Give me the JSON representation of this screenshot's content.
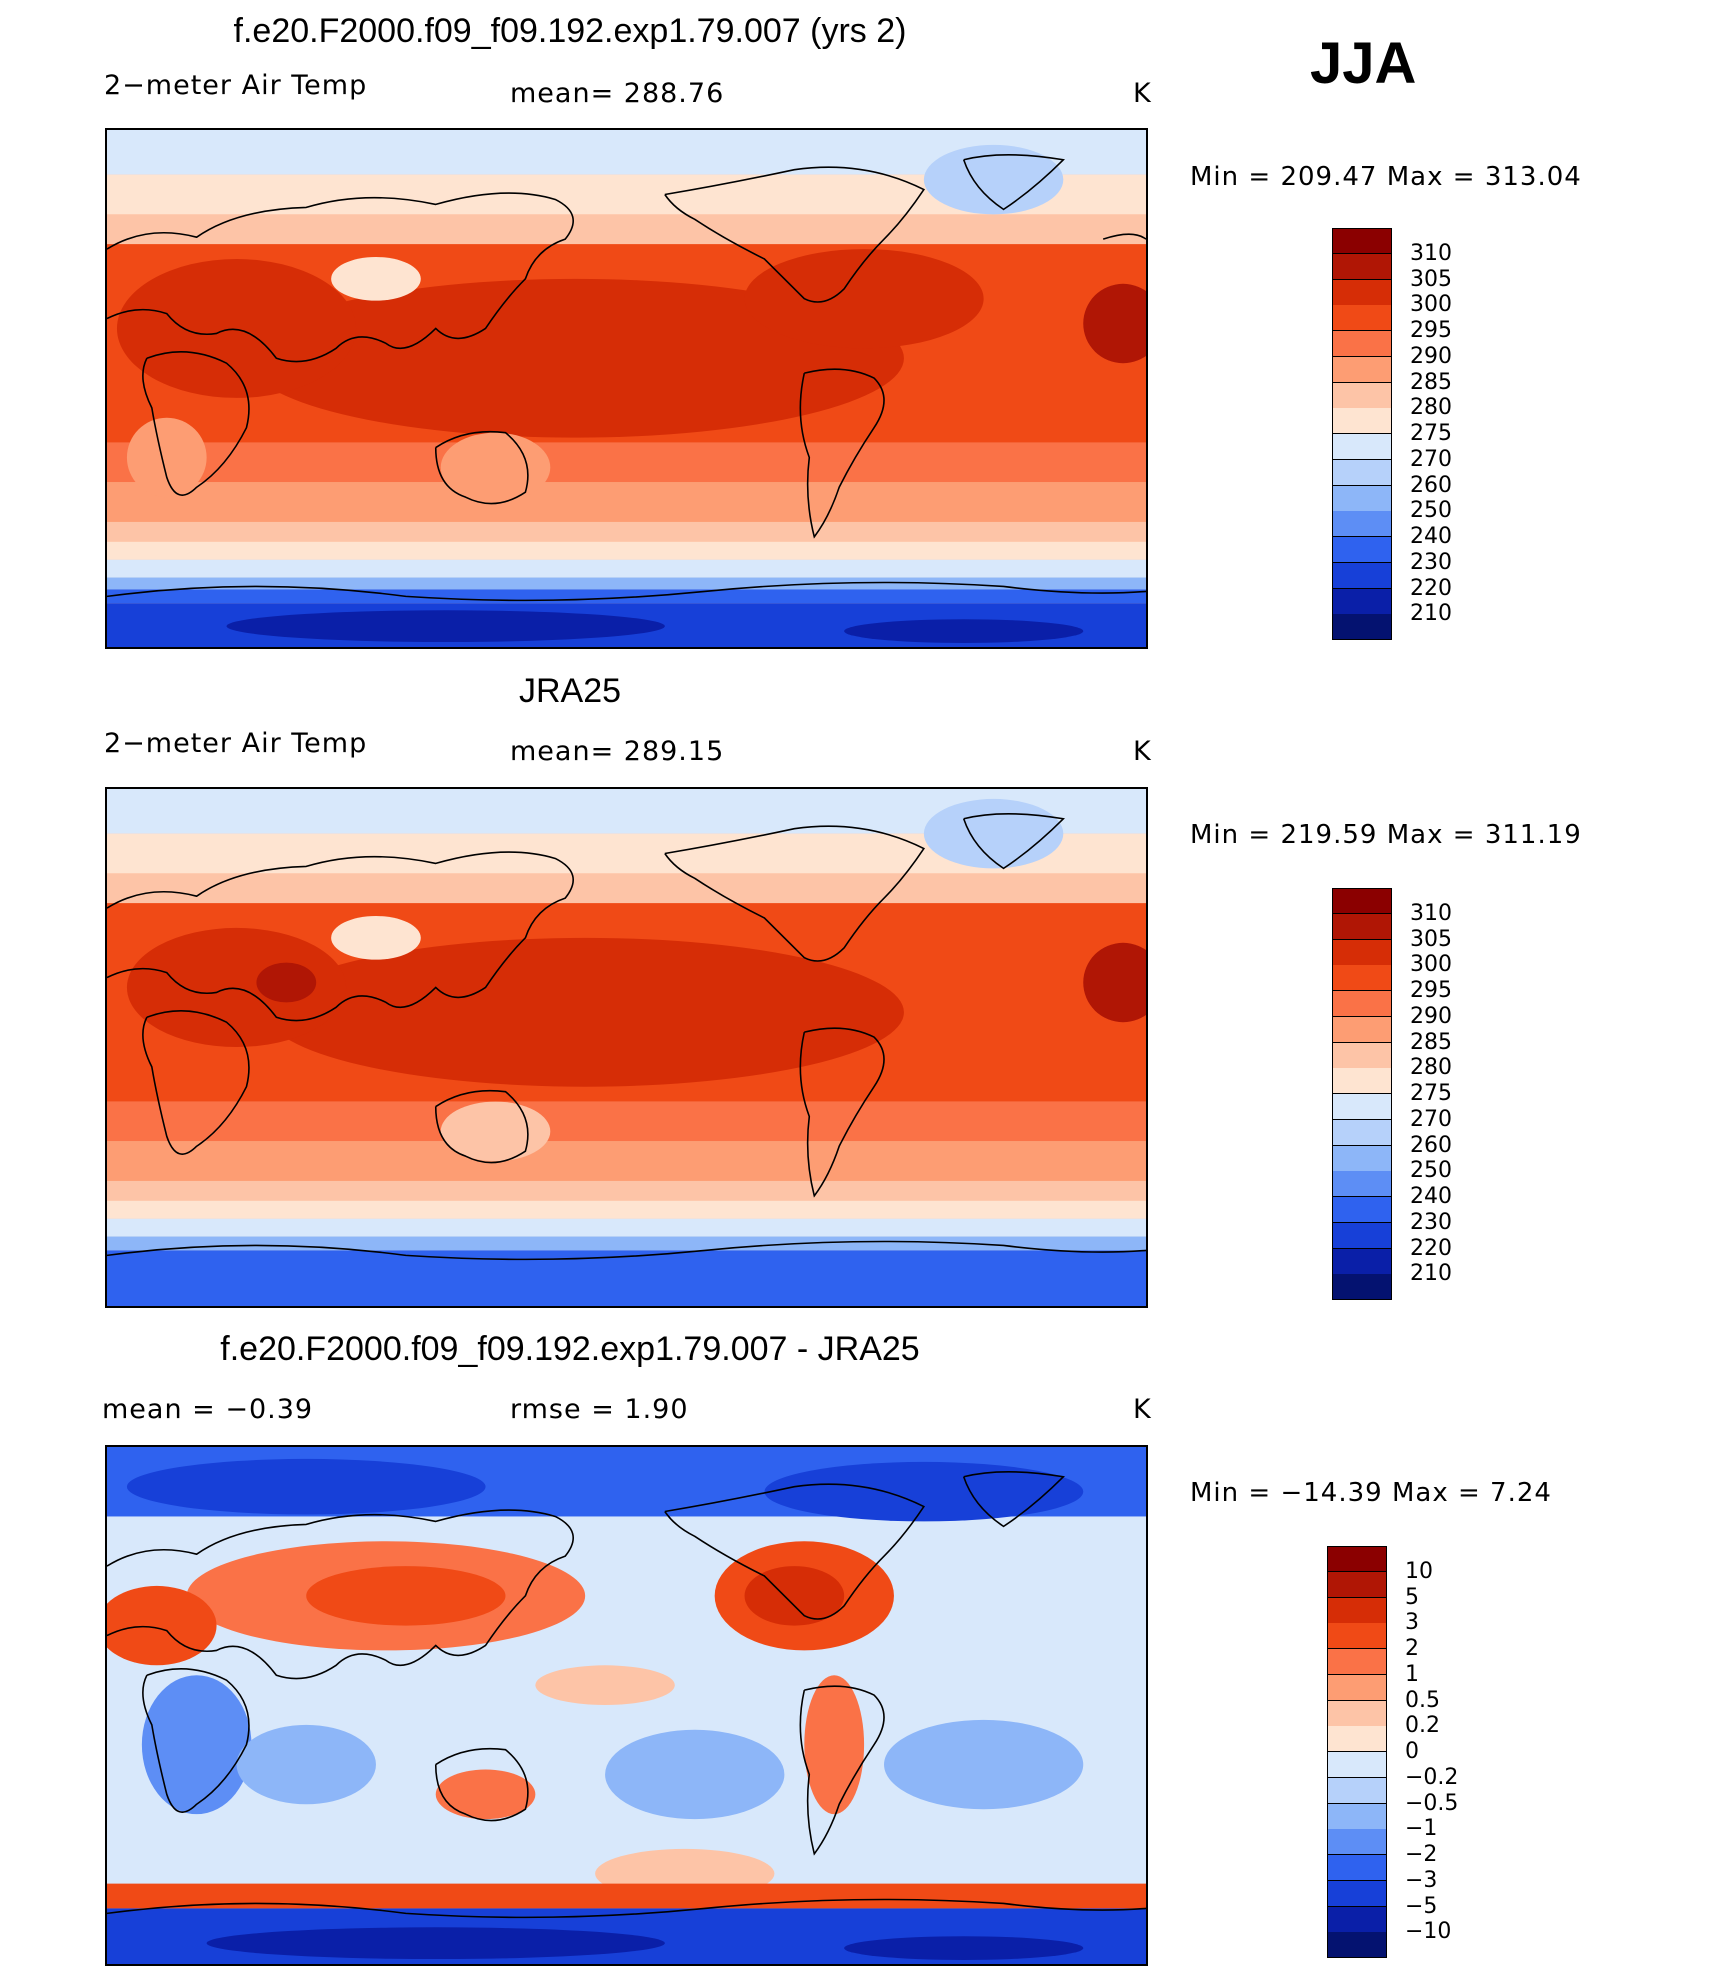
{
  "season": "JJA",
  "panels": [
    {
      "title": "f.e20.F2000.f09_f09.192.exp1.79.007 (yrs 2)",
      "left_label": "2−meter Air Temp",
      "center_label": "mean=  288.76",
      "units": "K",
      "min_label": "Min",
      "min_value": "209.47",
      "max_label": "Max",
      "max_value": "313.04",
      "colorbar_labels": [
        "310",
        "305",
        "300",
        "295",
        "290",
        "285",
        "280",
        "275",
        "270",
        "260",
        "250",
        "240",
        "230",
        "220",
        "210"
      ],
      "colorbar_colors": [
        "#8b0000",
        "#b01605",
        "#d62d06",
        "#f04a16",
        "#fa7247",
        "#fd9d73",
        "#fdc4a7",
        "#fee4d1",
        "#d8e8fb",
        "#b6d1fa",
        "#8db6f8",
        "#5d8ef5",
        "#2f62ef",
        "#1740d8",
        "#0a1fa8",
        "#041270"
      ]
    },
    {
      "title": "JRA25",
      "left_label": "2−meter Air Temp",
      "center_label": "mean=  289.15",
      "units": "K",
      "min_label": "Min",
      "min_value": "219.59",
      "max_label": "Max",
      "max_value": "311.19",
      "colorbar_labels": [
        "310",
        "305",
        "300",
        "295",
        "290",
        "285",
        "280",
        "275",
        "270",
        "260",
        "250",
        "240",
        "230",
        "220",
        "210"
      ],
      "colorbar_colors": [
        "#8b0000",
        "#b01605",
        "#d62d06",
        "#f04a16",
        "#fa7247",
        "#fd9d73",
        "#fdc4a7",
        "#fee4d1",
        "#d8e8fb",
        "#b6d1fa",
        "#8db6f8",
        "#5d8ef5",
        "#2f62ef",
        "#1740d8",
        "#0a1fa8",
        "#041270"
      ]
    },
    {
      "title": "f.e20.F2000.f09_f09.192.exp1.79.007 - JRA25",
      "left_label": "mean =    −0.39",
      "center_label": "rmse =     1.90",
      "units": "K",
      "min_label": "Min",
      "min_value": "−14.39",
      "max_label": "Max",
      "max_value": "7.24",
      "colorbar_labels": [
        "10",
        "5",
        "3",
        "2",
        "1",
        "0.5",
        "0.2",
        "0",
        "−0.2",
        "−0.5",
        "−1",
        "−2",
        "−3",
        "−5",
        "−10"
      ],
      "colorbar_colors": [
        "#8b0000",
        "#b01605",
        "#d62d06",
        "#f04a16",
        "#fa7247",
        "#fd9d73",
        "#fdc4a7",
        "#fee4d1",
        "#d8e8fb",
        "#b6d1fa",
        "#8db6f8",
        "#5d8ef5",
        "#2f62ef",
        "#1740d8",
        "#0a1fa8",
        "#041270"
      ]
    }
  ],
  "palette": {
    "hot": "#d62d06",
    "warm": "#f04a16",
    "mild": "#fa7247",
    "pale": "#fdc4a7",
    "cream": "#fee4d1",
    "ice": "#d8e8fb",
    "cool": "#8db6f8",
    "cold": "#2f62ef",
    "frigid": "#0a1fa8"
  }
}
